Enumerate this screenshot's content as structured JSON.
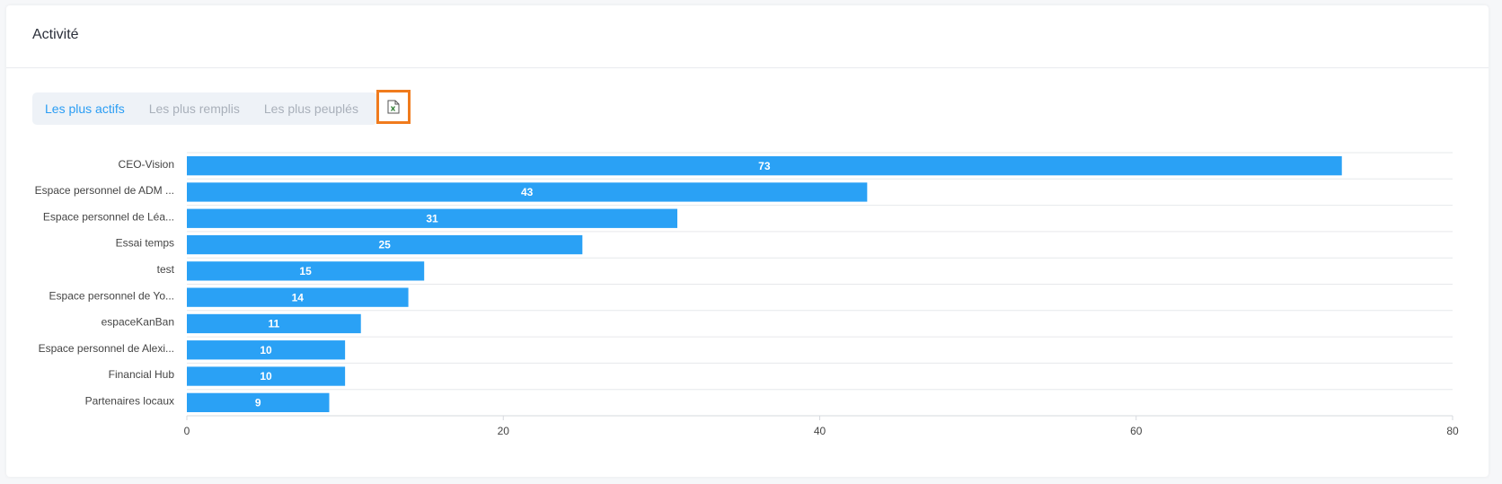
{
  "header": {
    "title": "Activité"
  },
  "tabs": [
    "Les plus actifs",
    "Les plus remplis",
    "Les plus peuplés"
  ],
  "chart_data": {
    "type": "bar",
    "orientation": "horizontal",
    "categories": [
      "CEO-Vision",
      "Espace personnel de ADM ...",
      "Espace personnel de Léa...",
      "Essai temps",
      "test",
      "Espace personnel de Yo...",
      "espaceKanBan",
      "Espace personnel de Alexi...",
      "Financial Hub",
      "Partenaires locaux"
    ],
    "values": [
      73,
      43,
      31,
      25,
      15,
      14,
      11,
      10,
      10,
      9
    ],
    "color": "#2aa1f5",
    "xlim": [
      0,
      80
    ],
    "xticks": [
      0,
      20,
      40,
      60,
      80
    ]
  }
}
